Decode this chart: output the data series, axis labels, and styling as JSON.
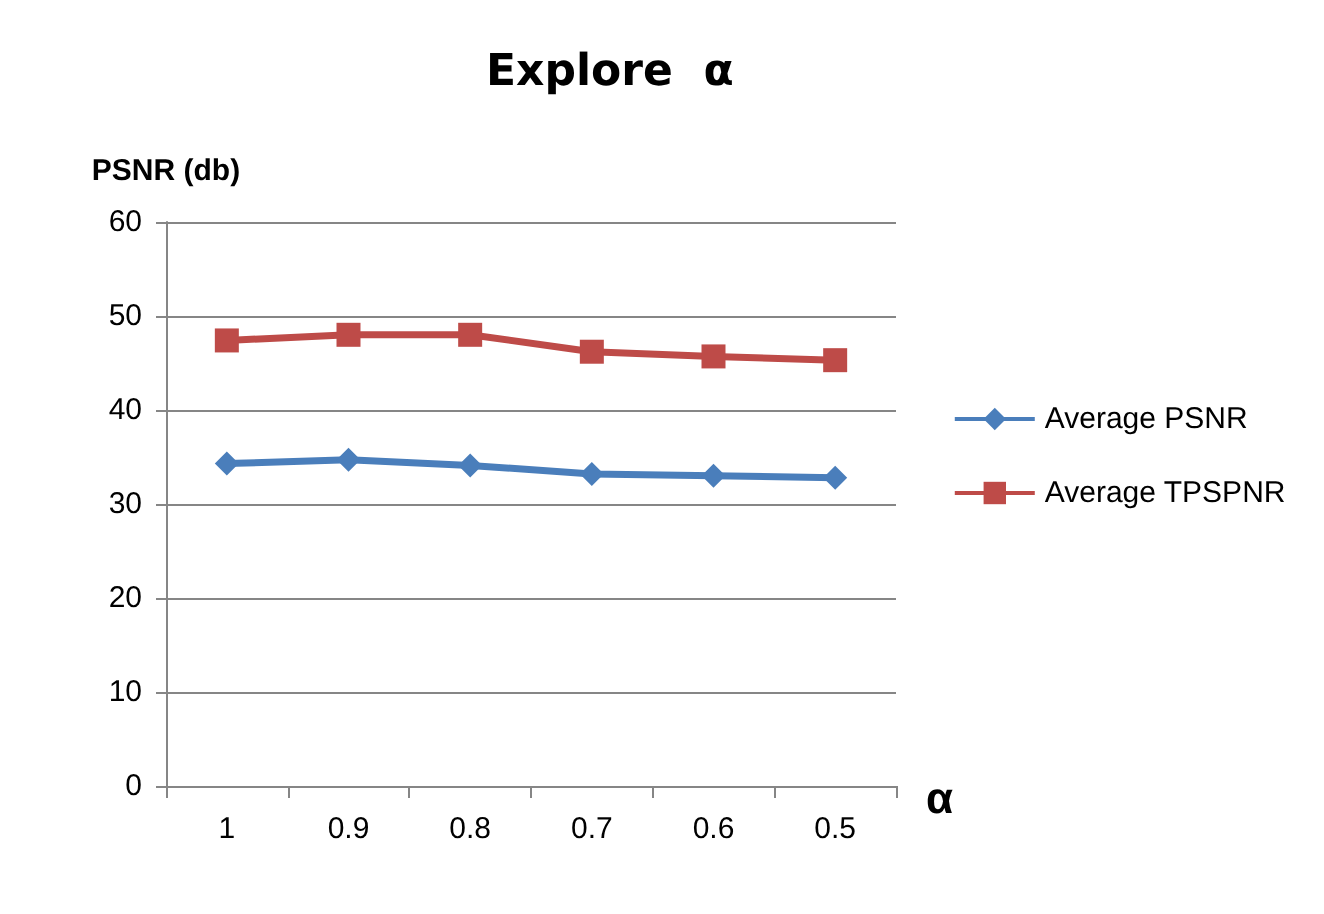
{
  "chart_data": {
    "type": "line",
    "title": "Explore  α",
    "ylabel": "PSNR (db)",
    "xlabel": "α",
    "categories": [
      "1",
      "0.9",
      "0.8",
      "0.7",
      "0.6",
      "0.5"
    ],
    "series": [
      {
        "name": "Average PSNR",
        "color": "#4a7ebb",
        "marker": "diamond",
        "values": [
          34.3,
          34.7,
          34.1,
          33.2,
          33,
          32.8
        ]
      },
      {
        "name": "Average TPSPNR",
        "color": "#be4b48",
        "marker": "square",
        "values": [
          47.4,
          48,
          48,
          46.2,
          45.7,
          45.3
        ]
      }
    ],
    "ylim": [
      0,
      60
    ],
    "yticks": [
      0,
      10,
      20,
      30,
      40,
      50,
      60
    ],
    "grid": "y",
    "legend": "right"
  }
}
